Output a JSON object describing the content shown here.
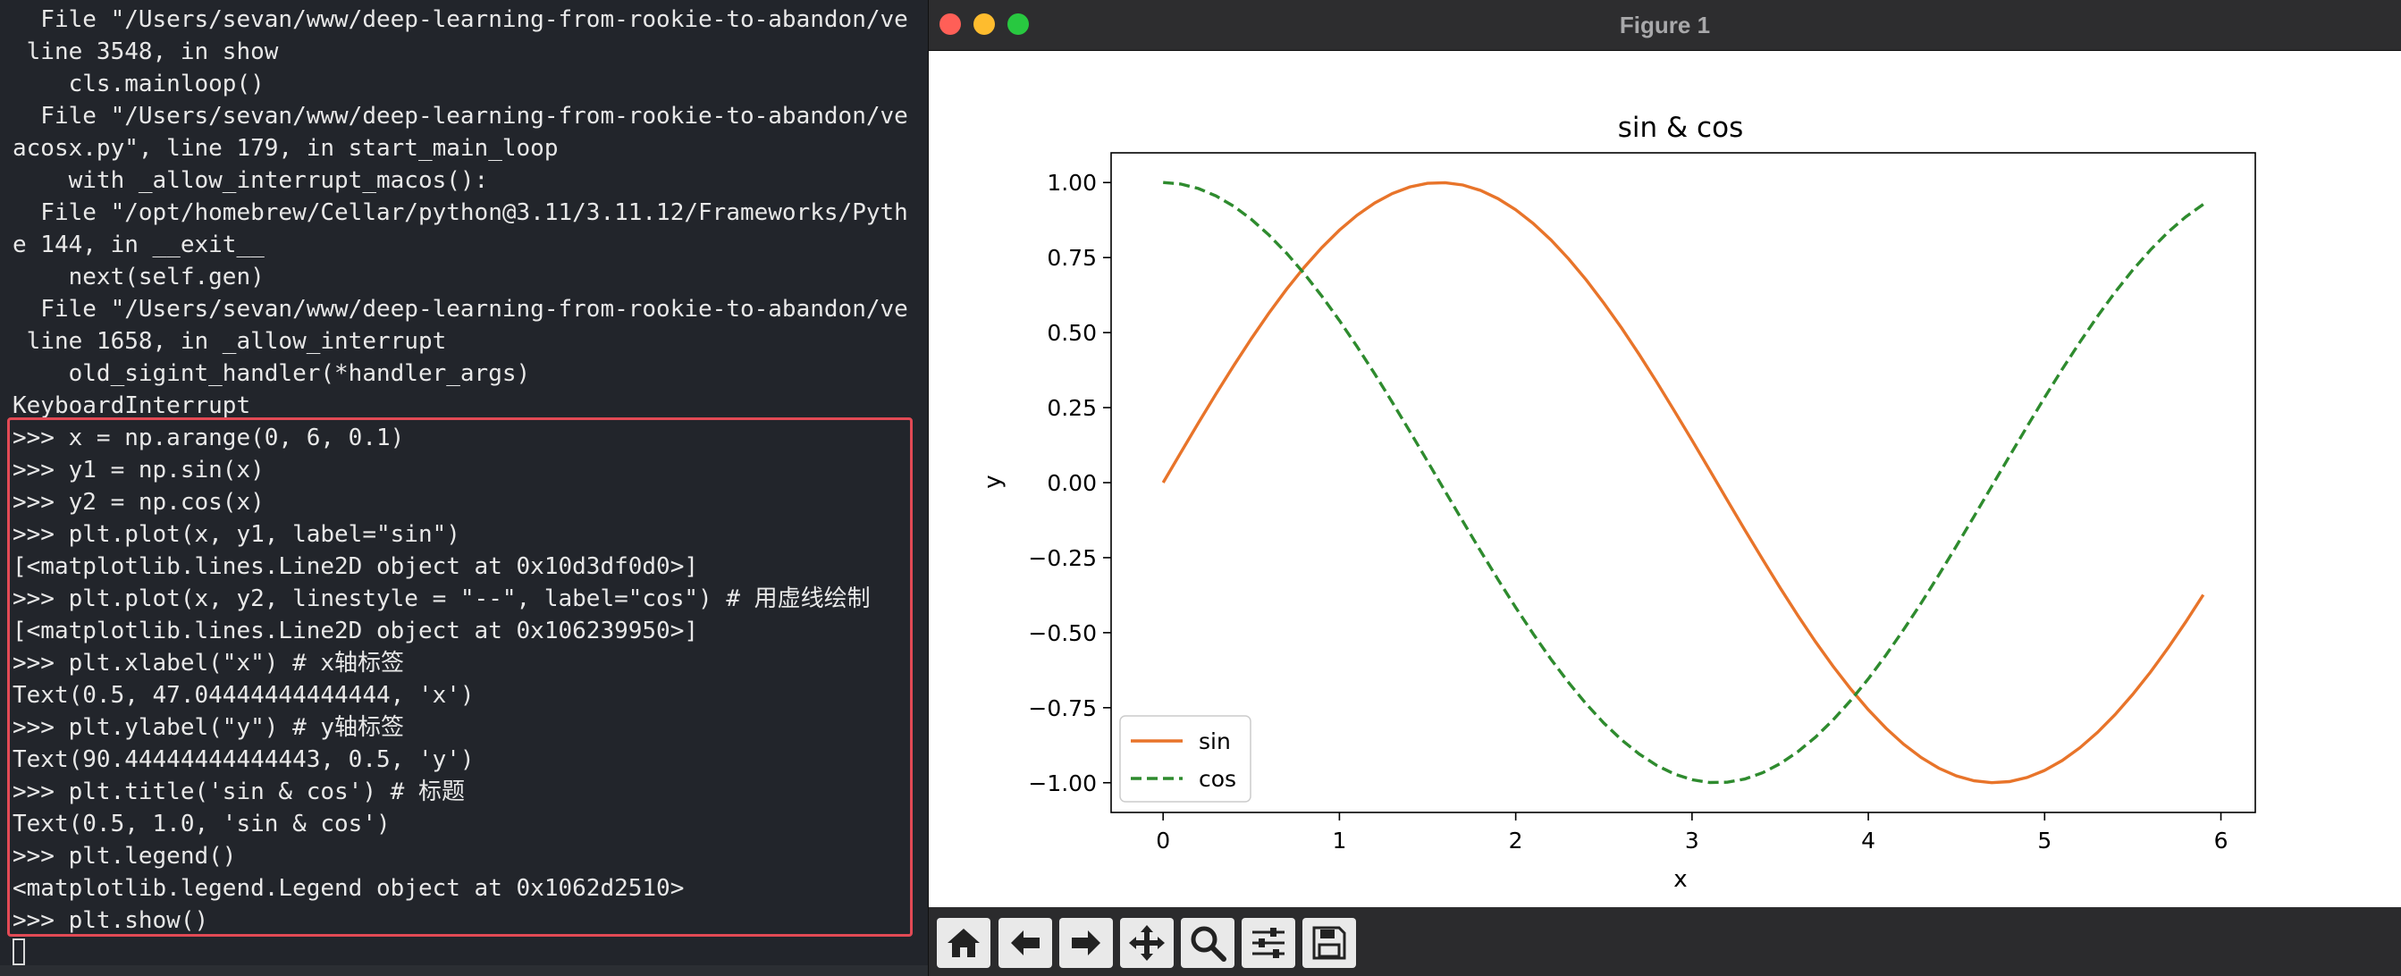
{
  "terminal": {
    "lines": [
      "  File \"/Users/sevan/www/deep-learning-from-rookie-to-abandon/ve",
      " line 3548, in show",
      "    cls.mainloop()",
      "  File \"/Users/sevan/www/deep-learning-from-rookie-to-abandon/ve",
      "acosx.py\", line 179, in start_main_loop",
      "    with _allow_interrupt_macos():",
      "  File \"/opt/homebrew/Cellar/python@3.11/3.11.12/Frameworks/Pyth",
      "e 144, in __exit__",
      "    next(self.gen)",
      "  File \"/Users/sevan/www/deep-learning-from-rookie-to-abandon/ve",
      " line 1658, in _allow_interrupt",
      "    old_sigint_handler(*handler_args)",
      "KeyboardInterrupt",
      ">>> x = np.arange(0, 6, 0.1)",
      ">>> y1 = np.sin(x)",
      ">>> y2 = np.cos(x)",
      ">>> plt.plot(x, y1, label=\"sin\")",
      "[<matplotlib.lines.Line2D object at 0x10d3df0d0>]",
      ">>> plt.plot(x, y2, linestyle = \"--\", label=\"cos\") # 用虚线绘制",
      "[<matplotlib.lines.Line2D object at 0x106239950>]",
      ">>> plt.xlabel(\"x\") # x轴标签",
      "Text(0.5, 47.04444444444444, 'x')",
      ">>> plt.ylabel(\"y\") # y轴标签",
      "Text(90.44444444444443, 0.5, 'y')",
      ">>> plt.title('sin & cos') # 标题",
      "Text(0.5, 1.0, 'sin & cos')",
      ">>> plt.legend()",
      "<matplotlib.legend.Legend object at 0x1062d2510>",
      ">>> plt.show()"
    ]
  },
  "figure_window": {
    "title": "Figure 1",
    "toolbar": {
      "buttons": [
        {
          "name": "home-button",
          "icon": "home-icon"
        },
        {
          "name": "back-button",
          "icon": "arrow-left-icon"
        },
        {
          "name": "forward-button",
          "icon": "arrow-right-icon"
        },
        {
          "name": "pan-button",
          "icon": "move-icon"
        },
        {
          "name": "zoom-button",
          "icon": "magnifier-icon"
        },
        {
          "name": "configure-subplots-button",
          "icon": "sliders-icon"
        },
        {
          "name": "save-button",
          "icon": "floppy-disk-icon"
        }
      ]
    }
  },
  "chart_data": {
    "type": "line",
    "title": "sin & cos",
    "xlabel": "x",
    "ylabel": "y",
    "xlim": [
      -0.295,
      6.195
    ],
    "ylim": [
      -1.099,
      1.099
    ],
    "xticks": [
      0,
      1,
      2,
      3,
      4,
      5,
      6
    ],
    "yticks": [
      1.0,
      0.75,
      0.5,
      0.25,
      0.0,
      -0.25,
      -0.5,
      -0.75,
      -1.0
    ],
    "ytick_labels": [
      "1.00",
      "0.75",
      "0.50",
      "0.25",
      "0.00",
      "−0.25",
      "−0.50",
      "−0.75",
      "−1.00"
    ],
    "x": [
      0,
      0.1,
      0.2,
      0.3,
      0.4,
      0.5,
      0.6,
      0.7,
      0.8,
      0.9,
      1.0,
      1.1,
      1.2,
      1.3,
      1.4,
      1.5,
      1.6,
      1.7,
      1.8,
      1.9,
      2.0,
      2.1,
      2.2,
      2.3,
      2.4,
      2.5,
      2.6,
      2.7,
      2.8,
      2.9,
      3.0,
      3.1,
      3.2,
      3.3,
      3.4,
      3.5,
      3.6,
      3.7,
      3.8,
      3.9,
      4.0,
      4.1,
      4.2,
      4.3,
      4.4,
      4.5,
      4.6,
      4.7,
      4.8,
      4.9,
      5.0,
      5.1,
      5.2,
      5.3,
      5.4,
      5.5,
      5.6,
      5.7,
      5.8,
      5.9
    ],
    "series": [
      {
        "name": "sin",
        "function": "sin",
        "color": "#e8742a",
        "linestyle": "solid"
      },
      {
        "name": "cos",
        "function": "cos",
        "color": "#2e8b2e",
        "linestyle": "dashed"
      }
    ],
    "legend_position": "lower-left",
    "grid": false
  },
  "colors": {
    "terminal_bg": "#22252b",
    "terminal_text": "#e8e8e8",
    "highlight_border": "#e24a55",
    "sin_line": "#e8742a",
    "cos_line": "#2e8b2e"
  }
}
